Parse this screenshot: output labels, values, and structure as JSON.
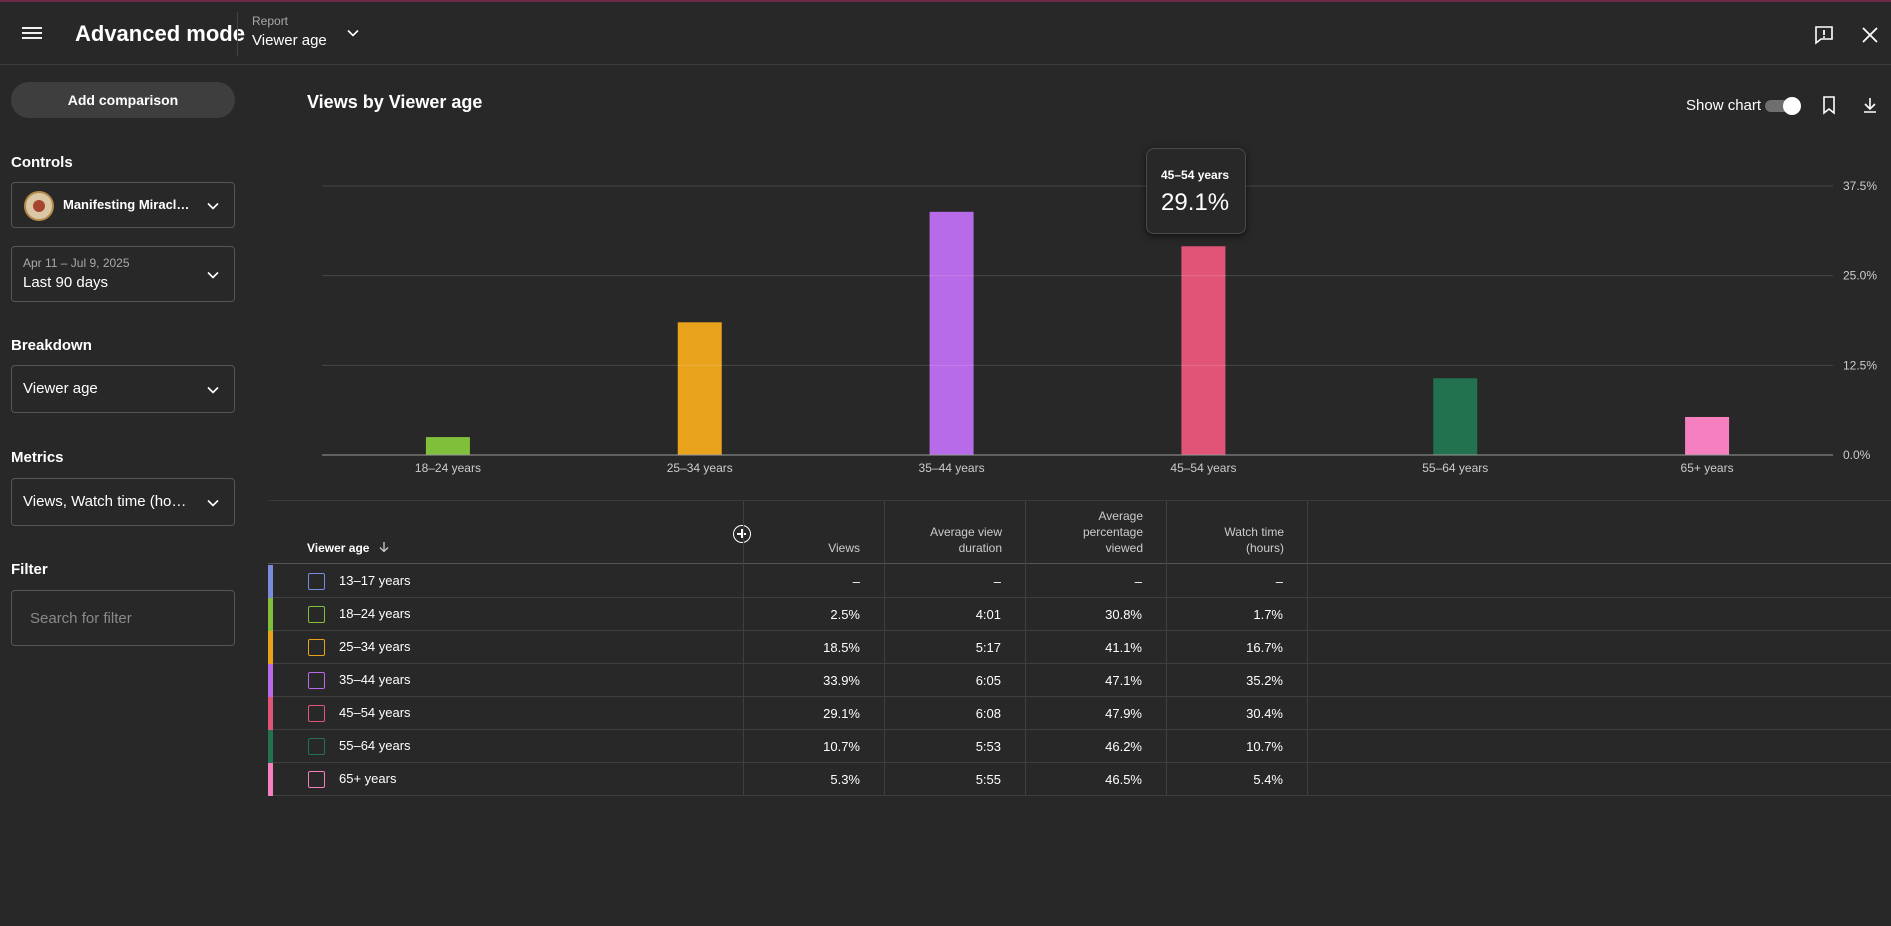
{
  "header": {
    "title": "Advanced mode",
    "report_label": "Report",
    "report_value": "Viewer age"
  },
  "sidebar": {
    "add_comparison": "Add comparison",
    "controls_heading": "Controls",
    "channel_name": "Manifesting Miracl…",
    "date_range_small": "Apr 11 – Jul 9, 2025",
    "date_range": "Last 90 days",
    "breakdown_heading": "Breakdown",
    "breakdown_value": "Viewer age",
    "metrics_heading": "Metrics",
    "metrics_value": "Views, Watch time (ho…",
    "filter_heading": "Filter",
    "filter_placeholder": "Search for filter"
  },
  "main": {
    "chart_title": "Views by Viewer age",
    "show_chart_label": "Show chart",
    "tooltip": {
      "label": "45–54 years",
      "value": "29.1%"
    }
  },
  "chart_data": {
    "type": "bar",
    "title": "Views by Viewer age",
    "categories": [
      "18–24 years",
      "25–34 years",
      "35–44 years",
      "45–54 years",
      "55–64 years",
      "65+ years"
    ],
    "values": [
      2.5,
      18.5,
      33.9,
      29.1,
      10.7,
      5.3
    ],
    "colors": [
      "#7fbf3a",
      "#e8a21c",
      "#b86be8",
      "#e05577",
      "#22714f",
      "#f57fbf"
    ],
    "y_ticks": [
      "0.0%",
      "12.5%",
      "25.0%",
      "37.5%"
    ],
    "ylim": [
      0,
      37.5
    ],
    "grid": true
  },
  "table": {
    "headers": {
      "viewer_age": "Viewer age",
      "views": "Views",
      "avg_duration_1": "Average view",
      "avg_duration_2": "duration",
      "avg_pct_1": "Average",
      "avg_pct_2": "percentage",
      "avg_pct_3": "viewed",
      "watch_1": "Watch time",
      "watch_2": "(hours)"
    },
    "rows": [
      {
        "label": "13–17 years",
        "color": "#7b8bdc",
        "views": "–",
        "avg_duration": "–",
        "avg_pct": "–",
        "watch_time": "–"
      },
      {
        "label": "18–24 years",
        "color": "#7fbf3a",
        "views": "2.5%",
        "avg_duration": "4:01",
        "avg_pct": "30.8%",
        "watch_time": "1.7%"
      },
      {
        "label": "25–34 years",
        "color": "#e8a21c",
        "views": "18.5%",
        "avg_duration": "5:17",
        "avg_pct": "41.1%",
        "watch_time": "16.7%"
      },
      {
        "label": "35–44 years",
        "color": "#b86be8",
        "views": "33.9%",
        "avg_duration": "6:05",
        "avg_pct": "47.1%",
        "watch_time": "35.2%"
      },
      {
        "label": "45–54 years",
        "color": "#e05577",
        "views": "29.1%",
        "avg_duration": "6:08",
        "avg_pct": "47.9%",
        "watch_time": "30.4%"
      },
      {
        "label": "55–64 years",
        "color": "#22714f",
        "views": "10.7%",
        "avg_duration": "5:53",
        "avg_pct": "46.2%",
        "watch_time": "10.7%"
      },
      {
        "label": "65+ years",
        "color": "#f57fbf",
        "views": "5.3%",
        "avg_duration": "5:55",
        "avg_pct": "46.5%",
        "watch_time": "5.4%"
      }
    ]
  }
}
